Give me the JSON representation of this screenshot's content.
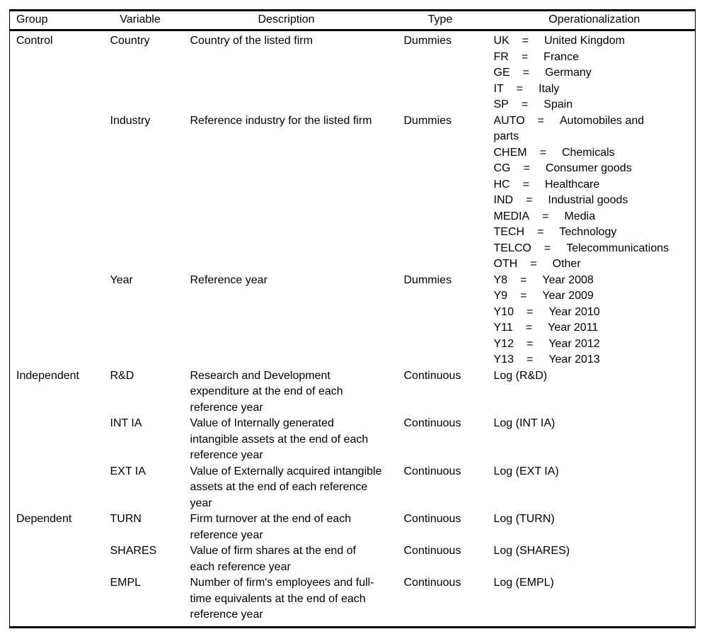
{
  "table": {
    "headers": {
      "group": "Group",
      "variable": "Variable",
      "description": "Description",
      "type": "Type",
      "operationalization": "Operationalization"
    },
    "rows": [
      {
        "group": "Control",
        "variable": "Country",
        "description": "Country of the listed firm",
        "type": "Dummies",
        "op": [
          {
            "code": "UK",
            "eq": "=",
            "value": "United Kingdom"
          },
          {
            "code": "FR",
            "eq": "=",
            "value": "France"
          },
          {
            "code": "GE",
            "eq": "=",
            "value": "Germany"
          },
          {
            "code": "IT",
            "eq": "=",
            "value": "Italy"
          },
          {
            "code": "SP",
            "eq": "=",
            "value": "Spain"
          }
        ]
      },
      {
        "group": "",
        "variable": "Industry",
        "description": "Reference industry for the listed firm",
        "type": "Dummies",
        "op": [
          {
            "code": "AUTO",
            "eq": "=",
            "value": "Automobiles and parts"
          },
          {
            "code": "CHEM",
            "eq": "=",
            "value": "Chemicals"
          },
          {
            "code": "CG",
            "eq": "=",
            "value": "Consumer goods"
          },
          {
            "code": "HC",
            "eq": "=",
            "value": "Healthcare"
          },
          {
            "code": "IND",
            "eq": "=",
            "value": "Industrial goods"
          },
          {
            "code": "MEDIA",
            "eq": "=",
            "value": "Media"
          },
          {
            "code": "TECH",
            "eq": "=",
            "value": "Technology"
          },
          {
            "code": "TELCO",
            "eq": "=",
            "value": "Telecommunications"
          },
          {
            "code": "OTH",
            "eq": "=",
            "value": "Other"
          }
        ]
      },
      {
        "group": "",
        "variable": "Year",
        "description": "Reference year",
        "type": "Dummies",
        "op": [
          {
            "code": "Y8",
            "eq": "=",
            "value": "Year 2008"
          },
          {
            "code": "Y9",
            "eq": "=",
            "value": "Year 2009"
          },
          {
            "code": "Y10",
            "eq": "=",
            "value": "Year 2010"
          },
          {
            "code": "Y11",
            "eq": "=",
            "value": "Year 2011"
          },
          {
            "code": "Y12",
            "eq": "=",
            "value": "Year 2012"
          },
          {
            "code": "Y13",
            "eq": "=",
            "value": "Year 2013"
          }
        ]
      },
      {
        "group": "Independent",
        "variable": "R&D",
        "description": "Research and Development expenditure at the end of each reference year",
        "type": "Continuous",
        "op": [
          {
            "value": "Log (R&D)"
          }
        ]
      },
      {
        "group": "",
        "variable": "INT IA",
        "description": "Value of Internally generated intangible assets at the end of each reference year",
        "type": "Continuous",
        "op": [
          {
            "value": "Log (INT IA)"
          }
        ]
      },
      {
        "group": "",
        "variable": "EXT IA",
        "description": "Value of Externally acquired intangible assets at the end of each reference year",
        "type": "Continuous",
        "op": [
          {
            "value": "Log (EXT IA)"
          }
        ]
      },
      {
        "group": "Dependent",
        "variable": "TURN",
        "description": "Firm turnover at the end of each reference year",
        "type": "Continuous",
        "op": [
          {
            "value": "Log (TURN)"
          }
        ]
      },
      {
        "group": "",
        "variable": "SHARES",
        "description": "Value of firm shares at the end of each reference year",
        "type": "Continuous",
        "op": [
          {
            "value": "Log (SHARES)"
          }
        ]
      },
      {
        "group": "",
        "variable": "EMPL",
        "description": "Number of firm's employees and full-time equivalents at the end of each reference year",
        "type": "Continuous",
        "op": [
          {
            "value": "Log (EMPL)"
          }
        ]
      }
    ]
  }
}
